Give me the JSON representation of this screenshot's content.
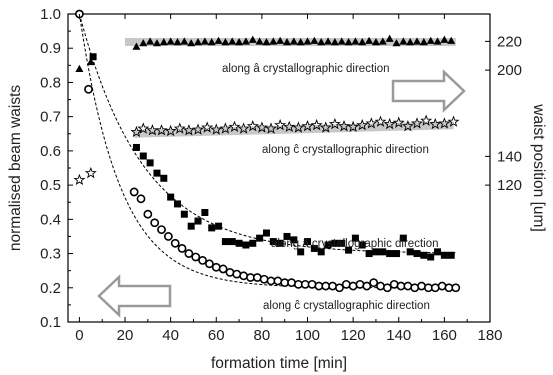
{
  "chart_data": {
    "type": "scatter",
    "title": "",
    "xlabel": "formation time [min]",
    "ylabel": "normalised beam waists",
    "y2label": "waist position [um]",
    "xlim": [
      -5,
      180
    ],
    "ylim": [
      0.1,
      1.0
    ],
    "y2ticks": [
      120,
      140,
      200,
      220
    ],
    "y2_at_left_value": [
      {
        "y2": 120,
        "y": 0.5
      },
      {
        "y2": 220,
        "y": 0.92
      }
    ],
    "x_ticks": [
      0,
      20,
      40,
      60,
      80,
      100,
      120,
      140,
      160,
      180
    ],
    "y_ticks": [
      0.1,
      0.2,
      0.3,
      0.4,
      0.5,
      0.6,
      0.7,
      0.8,
      0.9,
      1.0
    ],
    "grid": false,
    "legend": "none",
    "colors": {
      "marker": "#000000",
      "fit_line": "#000000",
      "trend_band": "#c8c8c8",
      "arrow": "#9a9a9a"
    },
    "annotations": [
      "along â crystallographic direction",
      "along ĉ crystallographic direction",
      "along â crystallographic direction",
      "along ĉ crystallographic direction"
    ],
    "series": [
      {
        "marker": "filled-triangle",
        "axis": "right",
        "x": [
          0,
          5,
          25,
          28,
          31,
          34,
          37,
          40,
          43,
          46,
          49,
          52,
          55,
          58,
          61,
          64,
          67,
          70,
          73,
          76,
          79,
          82,
          85,
          88,
          91,
          94,
          97,
          100,
          103,
          106,
          109,
          112,
          115,
          118,
          121,
          124,
          127,
          130,
          133,
          136,
          139,
          142,
          145,
          148,
          151,
          154,
          157,
          160,
          163
        ],
        "y": [
          0.84,
          0.86,
          0.905,
          0.915,
          0.92,
          0.915,
          0.918,
          0.92,
          0.918,
          0.92,
          0.915,
          0.918,
          0.92,
          0.918,
          0.922,
          0.918,
          0.92,
          0.918,
          0.92,
          0.925,
          0.92,
          0.918,
          0.92,
          0.922,
          0.918,
          0.92,
          0.918,
          0.92,
          0.922,
          0.918,
          0.92,
          0.918,
          0.92,
          0.918,
          0.92,
          0.918,
          0.922,
          0.918,
          0.92,
          0.928,
          0.915,
          0.92,
          0.918,
          0.92,
          0.918,
          0.922,
          0.92,
          0.925,
          0.922
        ]
      },
      {
        "marker": "open-star",
        "axis": "right",
        "x": [
          0,
          5,
          25,
          28,
          32,
          36,
          40,
          44,
          48,
          52,
          56,
          60,
          64,
          68,
          72,
          76,
          80,
          84,
          88,
          92,
          96,
          100,
          104,
          108,
          112,
          116,
          120,
          124,
          128,
          132,
          136,
          140,
          144,
          148,
          152,
          156,
          160,
          164
        ],
        "y": [
          0.515,
          0.535,
          0.655,
          0.665,
          0.66,
          0.66,
          0.658,
          0.665,
          0.66,
          0.662,
          0.668,
          0.662,
          0.665,
          0.67,
          0.665,
          0.672,
          0.668,
          0.665,
          0.675,
          0.67,
          0.668,
          0.672,
          0.675,
          0.668,
          0.678,
          0.672,
          0.67,
          0.675,
          0.68,
          0.685,
          0.678,
          0.682,
          0.672,
          0.68,
          0.688,
          0.678,
          0.68,
          0.685
        ]
      },
      {
        "marker": "open-circle",
        "axis": "left",
        "x": [
          0,
          4,
          24,
          27,
          30,
          33,
          36,
          39,
          42,
          45,
          48,
          51,
          54,
          57,
          60,
          63,
          66,
          69,
          72,
          75,
          78,
          81,
          84,
          87,
          90,
          93,
          96,
          99,
          102,
          105,
          108,
          111,
          114,
          117,
          120,
          123,
          126,
          129,
          132,
          135,
          138,
          141,
          144,
          147,
          150,
          153,
          156,
          159,
          162,
          165
        ],
        "y": [
          1.0,
          0.78,
          0.48,
          0.46,
          0.415,
          0.39,
          0.37,
          0.35,
          0.33,
          0.315,
          0.3,
          0.29,
          0.28,
          0.27,
          0.26,
          0.255,
          0.245,
          0.24,
          0.235,
          0.23,
          0.23,
          0.225,
          0.22,
          0.22,
          0.215,
          0.215,
          0.21,
          0.21,
          0.21,
          0.205,
          0.205,
          0.205,
          0.2,
          0.21,
          0.205,
          0.21,
          0.205,
          0.215,
          0.205,
          0.2,
          0.21,
          0.205,
          0.205,
          0.2,
          0.205,
          0.2,
          0.2,
          0.205,
          0.2,
          0.2
        ]
      },
      {
        "marker": "filled-square",
        "axis": "left",
        "x": [
          6,
          25,
          28,
          31,
          34,
          37,
          40,
          43,
          46,
          49,
          52,
          55,
          58,
          61,
          64,
          67,
          70,
          73,
          76,
          79,
          82,
          85,
          88,
          91,
          94,
          97,
          100,
          103,
          106,
          109,
          112,
          115,
          118,
          121,
          124,
          127,
          130,
          133,
          136,
          139,
          142,
          145,
          148,
          151,
          154,
          157,
          160,
          163
        ],
        "y": [
          0.875,
          0.61,
          0.585,
          0.565,
          0.535,
          0.52,
          0.465,
          0.445,
          0.415,
          0.38,
          0.395,
          0.42,
          0.375,
          0.38,
          0.335,
          0.335,
          0.33,
          0.325,
          0.33,
          0.345,
          0.36,
          0.335,
          0.33,
          0.35,
          0.34,
          0.305,
          0.335,
          0.315,
          0.305,
          0.325,
          0.33,
          0.33,
          0.31,
          0.345,
          0.325,
          0.3,
          0.305,
          0.305,
          0.3,
          0.3,
          0.345,
          0.305,
          0.3,
          0.295,
          0.29,
          0.305,
          0.295,
          0.295
        ]
      }
    ],
    "fits": [
      {
        "of": "open-circle",
        "form": "exp",
        "a": 0.2,
        "b": 0.8,
        "tau": 18
      },
      {
        "of": "filled-square",
        "form": "exp",
        "a": 0.3,
        "b": 0.7,
        "tau": 28
      }
    ],
    "trend_bands": [
      {
        "x": [
          20,
          165
        ],
        "y": [
          0.918,
          0.918
        ]
      },
      {
        "x": [
          24,
          164
        ],
        "y": [
          0.65,
          0.675
        ]
      }
    ]
  }
}
